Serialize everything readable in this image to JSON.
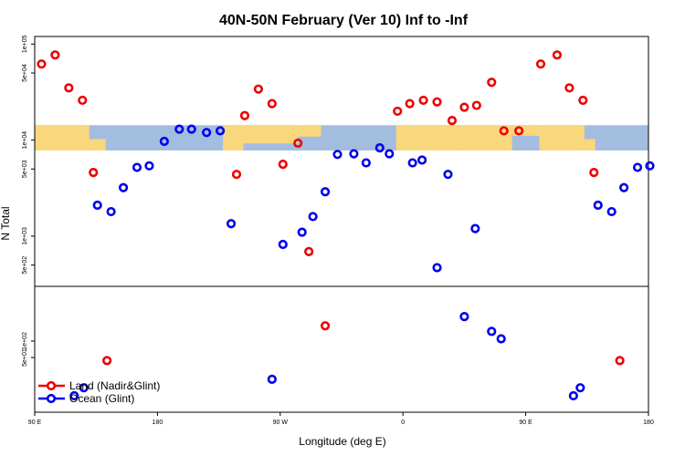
{
  "colors": {
    "land": "#ee0000",
    "ocean": "#0000ee",
    "map_ocean": "#a3bddf",
    "map_land": "#f9d77c"
  },
  "chart_data": {
    "type": "scatter",
    "title": "40N-50N February (Ver 10)   Inf to -Inf",
    "xlabel": "Longitude (deg E)",
    "ylabel": "N Total",
    "x_ticks": [
      {
        "value": 90,
        "label": "90 E"
      },
      {
        "value": 180,
        "label": "180"
      },
      {
        "value": 270,
        "label": "90 W"
      },
      {
        "value": 360,
        "label": "0"
      },
      {
        "value": 450,
        "label": "90 E"
      },
      {
        "value": 540,
        "label": "180"
      }
    ],
    "xlim": [
      90,
      540
    ],
    "upper_panel": {
      "scale": "log",
      "ylim": [
        300,
        120000
      ],
      "y_ticks": [
        {
          "value": 100000,
          "label": "1e+05"
        },
        {
          "value": 50000,
          "label": "5e+04"
        },
        {
          "value": 10000,
          "label": "1e+04"
        },
        {
          "value": 5000,
          "label": "5e+03"
        },
        {
          "value": 1000,
          "label": "1e+03"
        },
        {
          "value": 500,
          "label": "5e+02"
        }
      ],
      "map_band": {
        "y_top": 14300,
        "y_bottom": 7800
      }
    },
    "lower_panel": {
      "scale": "log",
      "ylim": [
        5,
        1000
      ],
      "y_ticks": [
        {
          "value": 100,
          "label": "1e+02"
        },
        {
          "value": 50,
          "label": "5e+01"
        }
      ]
    },
    "series": [
      {
        "name": "Land (Nadir&Glint)",
        "color": "#ee0000",
        "points": [
          {
            "lon": 95,
            "n": 62000
          },
          {
            "lon": 105,
            "n": 77000
          },
          {
            "lon": 115,
            "n": 35000
          },
          {
            "lon": 125,
            "n": 26000
          },
          {
            "lon": 133,
            "n": 4600
          },
          {
            "lon": 143,
            "n": 44,
            "panel": "lower"
          },
          {
            "lon": 238,
            "n": 4400
          },
          {
            "lon": 244,
            "n": 18000
          },
          {
            "lon": 254,
            "n": 34000
          },
          {
            "lon": 264,
            "n": 24000
          },
          {
            "lon": 272,
            "n": 5600
          },
          {
            "lon": 283,
            "n": 9300
          },
          {
            "lon": 291,
            "n": 690
          },
          {
            "lon": 303,
            "n": 190,
            "panel": "lower"
          },
          {
            "lon": 356,
            "n": 20000
          },
          {
            "lon": 365,
            "n": 24000
          },
          {
            "lon": 375,
            "n": 26000
          },
          {
            "lon": 385,
            "n": 25000
          },
          {
            "lon": 396,
            "n": 16000
          },
          {
            "lon": 405,
            "n": 22000
          },
          {
            "lon": 414,
            "n": 23000
          },
          {
            "lon": 425,
            "n": 40000
          },
          {
            "lon": 434,
            "n": 12500
          },
          {
            "lon": 445,
            "n": 12500
          },
          {
            "lon": 461,
            "n": 62000
          },
          {
            "lon": 473,
            "n": 77000
          },
          {
            "lon": 482,
            "n": 35000
          },
          {
            "lon": 492,
            "n": 26000
          },
          {
            "lon": 500,
            "n": 4600
          },
          {
            "lon": 519,
            "n": 44,
            "panel": "lower"
          }
        ]
      },
      {
        "name": "Ocean (Glint)",
        "color": "#0000ee",
        "points": [
          {
            "lon": 119,
            "n": 10,
            "panel": "lower"
          },
          {
            "lon": 126,
            "n": 14,
            "panel": "lower"
          },
          {
            "lon": 136,
            "n": 2100
          },
          {
            "lon": 146,
            "n": 1800
          },
          {
            "lon": 155,
            "n": 3200
          },
          {
            "lon": 165,
            "n": 5200
          },
          {
            "lon": 174,
            "n": 5400
          },
          {
            "lon": 185,
            "n": 9700
          },
          {
            "lon": 196,
            "n": 13000
          },
          {
            "lon": 205,
            "n": 13000
          },
          {
            "lon": 216,
            "n": 12000
          },
          {
            "lon": 226,
            "n": 12500
          },
          {
            "lon": 234,
            "n": 1350
          },
          {
            "lon": 264,
            "n": 20,
            "panel": "lower"
          },
          {
            "lon": 272,
            "n": 820
          },
          {
            "lon": 286,
            "n": 1100
          },
          {
            "lon": 294,
            "n": 1600
          },
          {
            "lon": 303,
            "n": 2900
          },
          {
            "lon": 312,
            "n": 7100
          },
          {
            "lon": 324,
            "n": 7200
          },
          {
            "lon": 333,
            "n": 5800
          },
          {
            "lon": 343,
            "n": 8300
          },
          {
            "lon": 350,
            "n": 7200
          },
          {
            "lon": 367,
            "n": 5800
          },
          {
            "lon": 374,
            "n": 6200
          },
          {
            "lon": 385,
            "n": 470
          },
          {
            "lon": 393,
            "n": 4400
          },
          {
            "lon": 405,
            "n": 280,
            "panel": "lower"
          },
          {
            "lon": 413,
            "n": 1200
          },
          {
            "lon": 425,
            "n": 150,
            "panel": "lower"
          },
          {
            "lon": 432,
            "n": 110,
            "panel": "lower"
          },
          {
            "lon": 485,
            "n": 10,
            "panel": "lower"
          },
          {
            "lon": 490,
            "n": 14,
            "panel": "lower"
          },
          {
            "lon": 503,
            "n": 2100
          },
          {
            "lon": 513,
            "n": 1800
          },
          {
            "lon": 522,
            "n": 3200
          },
          {
            "lon": 532,
            "n": 5200
          },
          {
            "lon": 541,
            "n": 5400
          }
        ]
      }
    ],
    "legend": {
      "position": "bottom-left",
      "entries": [
        {
          "label": "Land (Nadir&Glint)",
          "color": "#ee0000"
        },
        {
          "label": "Ocean (Glint)",
          "color": "#0000ee"
        }
      ]
    }
  }
}
